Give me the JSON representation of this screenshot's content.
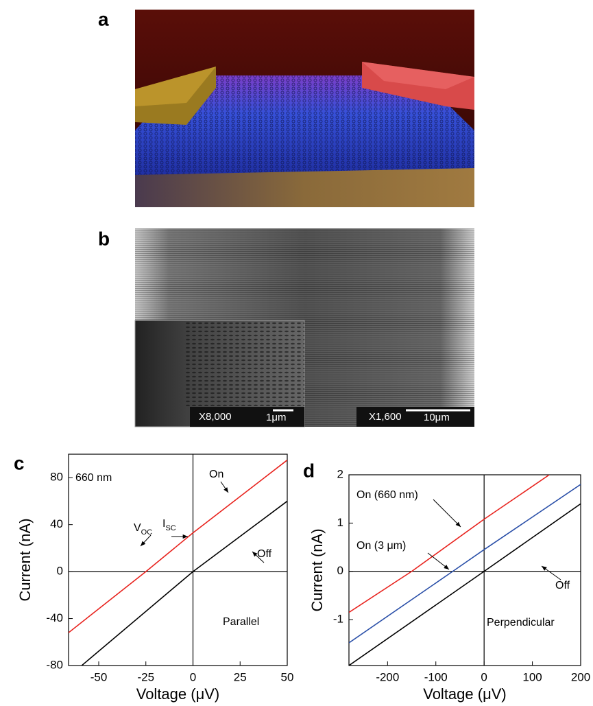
{
  "panels": {
    "a": "a",
    "b": "b"
  },
  "sem": {
    "inset_mag": "X8,000",
    "inset_scale": "1μm",
    "main_mag": "X1,600",
    "main_scale": "10μm"
  },
  "chart_data": [
    {
      "type": "line",
      "panel": "c",
      "xlabel": "Voltage (μV)",
      "ylabel": "Current (nA)",
      "xlim": [
        -66,
        50
      ],
      "ylim": [
        -80,
        100
      ],
      "xticks": [
        -50,
        -25,
        0,
        25,
        50
      ],
      "yticks": [
        -80,
        -40,
        0,
        40,
        80
      ],
      "series": [
        {
          "name": "On",
          "color": "#e8221d",
          "x": [
            -66,
            -25,
            0,
            50
          ],
          "values": [
            -52,
            0,
            33,
            95
          ]
        },
        {
          "name": "Off",
          "color": "#000000",
          "x": [
            -59,
            0,
            50
          ],
          "values": [
            -80,
            0,
            60
          ]
        }
      ],
      "annotations": [
        {
          "text": "660 nm"
        },
        {
          "text": "On"
        },
        {
          "text": "Off"
        },
        {
          "text": "V",
          "sub": "OC"
        },
        {
          "text": "I",
          "sub": "SC"
        },
        {
          "text": "Parallel"
        }
      ]
    },
    {
      "type": "line",
      "panel": "d",
      "xlabel": "Voltage (μV)",
      "ylabel": "Current (nA)",
      "xlim": [
        -280,
        200
      ],
      "ylim": [
        -1.95,
        2
      ],
      "xticks": [
        -200,
        -100,
        0,
        100,
        200
      ],
      "yticks": [
        -1,
        0,
        1,
        2
      ],
      "series": [
        {
          "name": "On (660 nm)",
          "color": "#e8221d",
          "x": [
            -280,
            -150,
            0,
            135
          ],
          "values": [
            -0.85,
            0,
            1.08,
            2
          ]
        },
        {
          "name": "On (3 μm)",
          "color": "#2a4fa8",
          "x": [
            -280,
            -65,
            0,
            200
          ],
          "values": [
            -1.48,
            0,
            0.45,
            1.8
          ]
        },
        {
          "name": "Off",
          "color": "#000000",
          "x": [
            -280,
            0,
            200
          ],
          "values": [
            -1.95,
            0,
            1.4
          ]
        }
      ],
      "annotations": [
        {
          "text": "On (660 nm)"
        },
        {
          "text": "On (3 μm)"
        },
        {
          "text": "Off"
        },
        {
          "text": "Perpendicular"
        }
      ]
    }
  ]
}
